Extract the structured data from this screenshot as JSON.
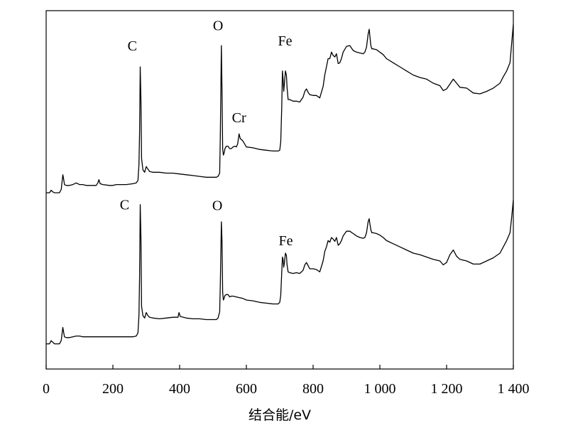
{
  "chart_data": {
    "type": "line",
    "xlabel": "结合能/eV",
    "ylabel": "",
    "xlim": [
      0,
      1400
    ],
    "y_ticks_shown": false,
    "grid": false,
    "x_ticks": [
      {
        "value": 0,
        "label": "0"
      },
      {
        "value": 200,
        "label": "200"
      },
      {
        "value": 400,
        "label": "400"
      },
      {
        "value": 600,
        "label": "600"
      },
      {
        "value": 800,
        "label": "800"
      },
      {
        "value": 1000,
        "label": "1 000"
      },
      {
        "value": 1200,
        "label": "1 200"
      },
      {
        "value": 1400,
        "label": "1 400"
      }
    ],
    "series": [
      {
        "position": "upper",
        "x": [
          0,
          5,
          10,
          15,
          20,
          25,
          30,
          40,
          45,
          50,
          52,
          55,
          60,
          70,
          80,
          90,
          95,
          100,
          110,
          120,
          130,
          150,
          155,
          158,
          162,
          170,
          190,
          200,
          210,
          220,
          240,
          260,
          270,
          275,
          278,
          280,
          282,
          284,
          286,
          290,
          295,
          300,
          305,
          310,
          320,
          340,
          360,
          380,
          400,
          420,
          440,
          460,
          480,
          490,
          500,
          510,
          515,
          520,
          522,
          525,
          527,
          529,
          531,
          533,
          536,
          540,
          545,
          550,
          555,
          560,
          565,
          570,
          574,
          578,
          582,
          586,
          590,
          600,
          620,
          640,
          660,
          680,
          690,
          695,
          700,
          703,
          706,
          708,
          710,
          712,
          714,
          717,
          720,
          722,
          725,
          730,
          740,
          750,
          760,
          770,
          775,
          780,
          785,
          790,
          800,
          810,
          820,
          830,
          835,
          840,
          845,
          850,
          855,
          860,
          865,
          870,
          875,
          880,
          885,
          890,
          900,
          910,
          920,
          930,
          940,
          950,
          955,
          960,
          965,
          968,
          970,
          973,
          976,
          980,
          990,
          1000,
          1010,
          1020,
          1040,
          1060,
          1080,
          1100,
          1120,
          1140,
          1160,
          1180,
          1190,
          1200,
          1210,
          1220,
          1230,
          1240,
          1260,
          1280,
          1300,
          1320,
          1340,
          1360,
          1370,
          1380,
          1390,
          1395,
          1400
        ],
        "y": [
          6,
          6,
          6,
          9,
          7,
          6,
          6,
          6,
          10,
          28,
          24,
          16,
          15,
          15,
          16,
          18,
          17,
          16,
          16,
          15,
          15,
          15,
          18,
          22,
          17,
          16,
          15,
          15,
          16,
          16,
          16,
          17,
          18,
          21,
          40,
          80,
          160,
          120,
          48,
          34,
          31,
          38,
          35,
          32,
          31,
          31,
          30,
          30,
          29,
          28,
          27,
          26,
          25,
          25,
          25,
          25,
          26,
          30,
          75,
          186,
          130,
          60,
          52,
          54,
          60,
          63,
          63,
          60,
          60,
          62,
          63,
          62,
          66,
          78,
          72,
          71,
          69,
          62,
          61,
          59,
          58,
          57,
          57,
          57,
          58,
          68,
          110,
          155,
          145,
          130,
          140,
          155,
          150,
          135,
          120,
          120,
          118,
          118,
          117,
          123,
          130,
          133,
          129,
          126,
          125,
          125,
          122,
          136,
          150,
          160,
          170,
          170,
          178,
          174,
          172,
          176,
          164,
          165,
          170,
          178,
          185,
          186,
          180,
          178,
          177,
          176,
          178,
          184,
          200,
          206,
          198,
          186,
          182,
          182,
          181,
          178,
          175,
          170,
          165,
          160,
          155,
          150,
          147,
          145,
          140,
          137,
          131,
          133,
          139,
          145,
          140,
          135,
          134,
          128,
          127,
          130,
          134,
          140,
          148,
          155,
          165,
          188,
          212
        ]
      },
      {
        "position": "lower",
        "x": [
          0,
          5,
          10,
          15,
          20,
          25,
          30,
          40,
          45,
          50,
          52,
          55,
          60,
          70,
          80,
          90,
          100,
          110,
          120,
          150,
          200,
          220,
          240,
          260,
          270,
          275,
          278,
          280,
          282,
          284,
          286,
          290,
          295,
          300,
          305,
          310,
          320,
          340,
          360,
          380,
          395,
          398,
          402,
          420,
          440,
          460,
          480,
          500,
          510,
          515,
          520,
          522,
          525,
          527,
          529,
          531,
          533,
          536,
          540,
          545,
          550,
          555,
          560,
          570,
          580,
          590,
          600,
          620,
          640,
          660,
          680,
          690,
          695,
          700,
          703,
          706,
          708,
          710,
          712,
          714,
          717,
          720,
          722,
          725,
          730,
          740,
          750,
          760,
          770,
          775,
          780,
          785,
          790,
          800,
          810,
          820,
          830,
          835,
          840,
          845,
          850,
          855,
          860,
          865,
          870,
          875,
          880,
          885,
          890,
          900,
          910,
          920,
          930,
          940,
          950,
          955,
          960,
          965,
          968,
          970,
          973,
          976,
          980,
          990,
          1000,
          1010,
          1020,
          1040,
          1060,
          1080,
          1100,
          1120,
          1140,
          1160,
          1180,
          1190,
          1200,
          1210,
          1220,
          1230,
          1240,
          1260,
          1280,
          1300,
          1320,
          1340,
          1360,
          1370,
          1380,
          1390,
          1395,
          1400
        ],
        "y": [
          4,
          4,
          4,
          8,
          6,
          4,
          4,
          4,
          8,
          25,
          20,
          13,
          12,
          12,
          13,
          14,
          14,
          13,
          13,
          13,
          13,
          13,
          13,
          13,
          14,
          18,
          40,
          90,
          182,
          140,
          52,
          40,
          37,
          44,
          40,
          38,
          37,
          36,
          37,
          38,
          38,
          44,
          39,
          37,
          36,
          36,
          35,
          35,
          35,
          37,
          45,
          80,
          160,
          135,
          70,
          60,
          62,
          66,
          67,
          67,
          64,
          65,
          65,
          64,
          63,
          62,
          60,
          59,
          57,
          56,
          55,
          55,
          55,
          57,
          66,
          95,
          115,
          112,
          102,
          108,
          120,
          117,
          105,
          96,
          95,
          94,
          95,
          94,
          98,
          105,
          108,
          104,
          100,
          100,
          99,
          96,
          110,
          122,
          128,
          136,
          134,
          140,
          138,
          135,
          140,
          130,
          132,
          136,
          142,
          148,
          148,
          145,
          142,
          140,
          139,
          140,
          146,
          160,
          164,
          158,
          150,
          146,
          146,
          145,
          143,
          140,
          136,
          132,
          128,
          124,
          120,
          118,
          115,
          112,
          110,
          105,
          108,
          118,
          124,
          116,
          112,
          110,
          106,
          106,
          110,
          114,
          120,
          128,
          136,
          146,
          165,
          188
        ]
      }
    ],
    "annotations": [
      {
        "series": 0,
        "text": "C",
        "x": 258,
        "y": 180
      },
      {
        "series": 0,
        "text": "O",
        "x": 515,
        "y": 205
      },
      {
        "series": 0,
        "text": "Cr",
        "x": 578,
        "y": 92
      },
      {
        "series": 0,
        "text": "Fe",
        "x": 716,
        "y": 186
      },
      {
        "series": 1,
        "text": "C",
        "x": 235,
        "y": 176
      },
      {
        "series": 1,
        "text": "O",
        "x": 513,
        "y": 175
      },
      {
        "series": 1,
        "text": "Fe",
        "x": 718,
        "y": 130
      }
    ]
  }
}
